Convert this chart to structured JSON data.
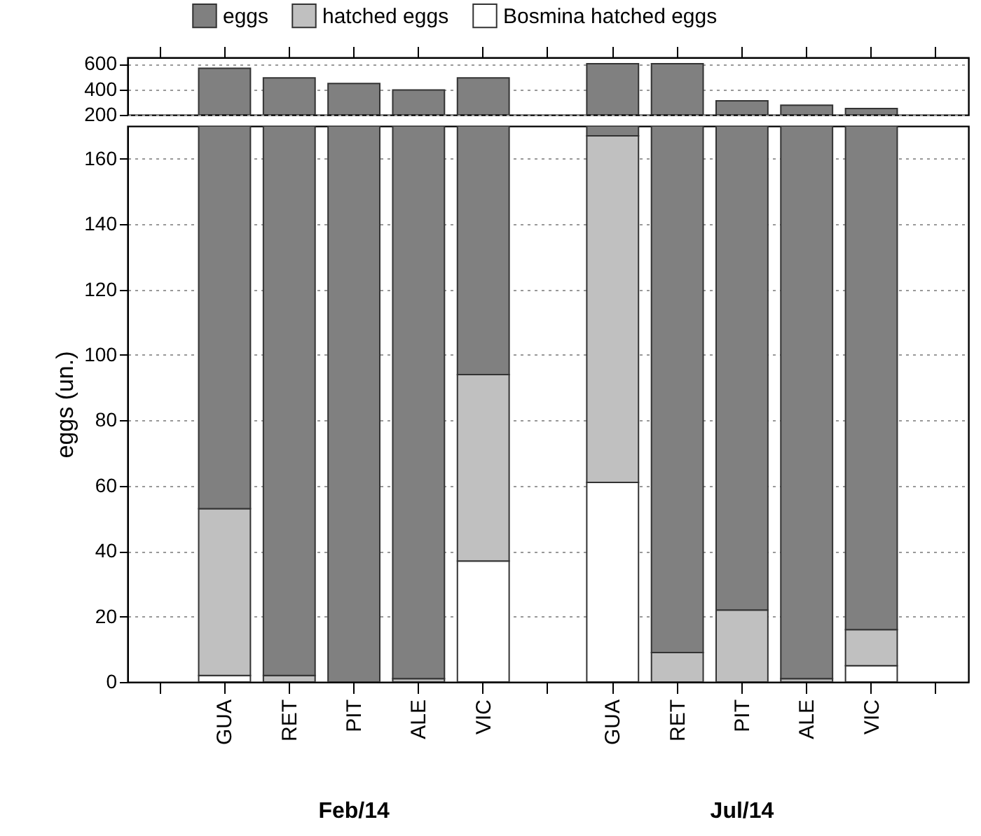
{
  "chart_data": [
    {
      "type": "bar",
      "categories": [
        null,
        null,
        null,
        null,
        null,
        null,
        null,
        null,
        null,
        null,
        null,
        null,
        null
      ],
      "ylim": [
        200,
        650
      ],
      "yticks": [
        200,
        400,
        600
      ],
      "grid": "y",
      "tick_labels": "y",
      "series": [
        {
          "color": "#808080",
          "values": [
            null,
            565,
            490,
            445,
            395,
            490,
            null,
            600,
            600,
            310,
            275,
            250,
            null
          ]
        }
      ]
    },
    {
      "type": "bar",
      "stacked": true,
      "categories": [
        null,
        "GUA",
        "RET",
        "PIT",
        "ALE",
        "VIC",
        null,
        "GUA",
        "RET",
        "PIT",
        "ALE",
        "VIC",
        null
      ],
      "ylim": [
        0,
        170
      ],
      "yticks": [
        0,
        20,
        40,
        60,
        80,
        100,
        120,
        140,
        160
      ],
      "grid": "y",
      "ylabel": "eggs (un.)",
      "legend": "top",
      "annotations": [
        "Feb/14",
        "Jul/14"
      ],
      "series": [
        {
          "name": "Bosmina hatched eggs",
          "color": "#ffffff",
          "values": [
            null,
            2,
            0,
            0,
            0,
            37,
            null,
            61,
            0,
            0,
            0,
            5,
            null
          ]
        },
        {
          "name": "hatched eggs",
          "color": "#c0c0c0",
          "values": [
            null,
            51,
            2,
            0,
            1,
            57,
            null,
            106,
            9,
            22,
            1,
            11,
            null
          ]
        },
        {
          "name": "eggs",
          "color": "#808080",
          "values": [
            null,
            117,
            168,
            170,
            169,
            76,
            null,
            3,
            161,
            148,
            169,
            154,
            null
          ]
        }
      ]
    }
  ]
}
